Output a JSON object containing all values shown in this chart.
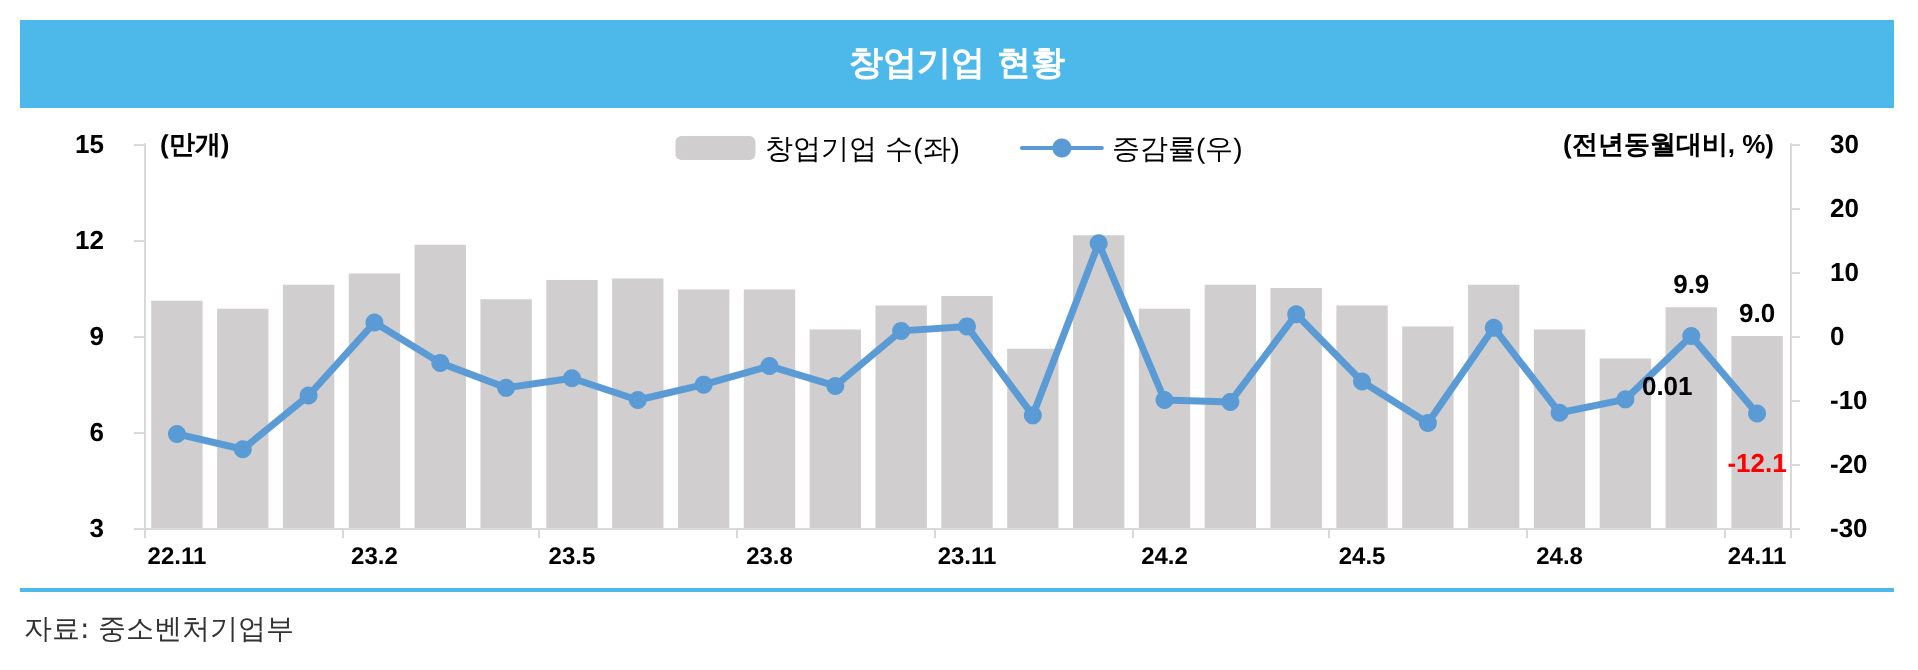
{
  "chart_data": {
    "type": "bar",
    "title": "창업기업 현황",
    "ylabel": "(만개)",
    "y2label": "(전년동월대비, %)",
    "annotations": [
      "자료: 중소벤처기업부"
    ],
    "categories": [
      "22.11",
      null,
      null,
      "23.2",
      null,
      null,
      "23.5",
      null,
      null,
      "23.8",
      null,
      null,
      "23.11",
      null,
      null,
      "24.2",
      null,
      null,
      "24.5",
      null,
      null,
      "24.8",
      null,
      null,
      "24.11"
    ],
    "series": [
      {
        "name": "창업기업 수(좌)",
        "color": "#d0cece",
        "values": [
          10.1,
          9.85,
          10.6,
          10.95,
          11.85,
          10.15,
          10.75,
          10.8,
          10.45,
          10.45,
          9.2,
          9.95,
          10.25,
          8.6,
          12.15,
          9.85,
          10.6,
          10.5,
          9.95,
          9.3,
          10.6,
          9.2,
          8.3,
          9.9,
          9.0
        ],
        "value_labels": [
          null,
          null,
          null,
          null,
          null,
          null,
          null,
          null,
          null,
          null,
          null,
          null,
          null,
          null,
          null,
          null,
          null,
          null,
          null,
          null,
          null,
          null,
          null,
          "9.9",
          "9.0"
        ]
      },
      {
        "name": "증감률(우)",
        "type": "line",
        "axis": "y2",
        "color": "#5b9bd5",
        "values": [
          -15.3,
          -17.7,
          -9.3,
          2.1,
          -4.2,
          -8.1,
          -6.6,
          -10.0,
          -7.6,
          -4.7,
          -7.8,
          0.8,
          1.5,
          -12.4,
          14.5,
          -10.0,
          -10.3,
          3.4,
          -7.1,
          -13.6,
          1.3,
          -12.0,
          -9.9,
          0.01,
          -12.1
        ],
        "value_labels": [
          null,
          null,
          null,
          null,
          null,
          null,
          null,
          null,
          null,
          null,
          null,
          null,
          null,
          null,
          null,
          null,
          null,
          null,
          null,
          null,
          null,
          null,
          null,
          "0.01",
          "-12.1"
        ]
      }
    ],
    "ylim": [
      3,
      15
    ],
    "yticks": [
      3,
      6,
      9,
      12,
      15
    ],
    "y2lim": [
      -30,
      30
    ],
    "y2ticks": [
      -30,
      -20,
      -10,
      0,
      10,
      20,
      30
    ],
    "grid": false,
    "legend": "top",
    "marker": "circle",
    "line_style": "solid"
  }
}
